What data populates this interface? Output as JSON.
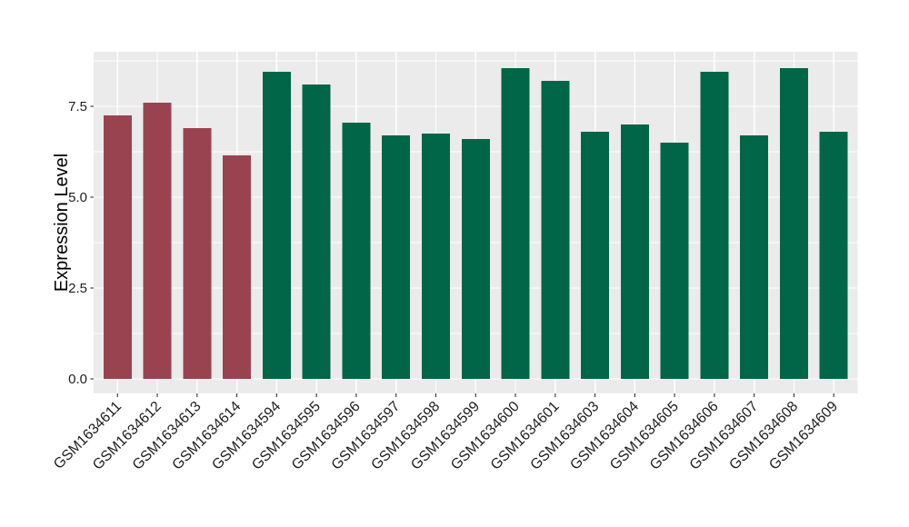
{
  "chart_data": {
    "type": "bar",
    "title": "",
    "xlabel": "",
    "ylabel": "Expression Level",
    "categories": [
      "GSM1634611",
      "GSM1634612",
      "GSM1634613",
      "GSM1634614",
      "GSM1634594",
      "GSM1634595",
      "GSM1634596",
      "GSM1634597",
      "GSM1634598",
      "GSM1634599",
      "GSM1634600",
      "GSM1634601",
      "GSM1634603",
      "GSM1634604",
      "GSM1634605",
      "GSM1634606",
      "GSM1634607",
      "GSM1634608",
      "GSM1634609"
    ],
    "values": [
      7.25,
      7.6,
      6.9,
      6.15,
      8.45,
      8.1,
      7.05,
      6.7,
      6.75,
      6.6,
      8.55,
      8.2,
      6.8,
      7.0,
      6.5,
      8.45,
      6.7,
      8.55,
      6.8
    ],
    "groups": [
      "a",
      "a",
      "a",
      "a",
      "b",
      "b",
      "b",
      "b",
      "b",
      "b",
      "b",
      "b",
      "b",
      "b",
      "b",
      "b",
      "b",
      "b",
      "b"
    ],
    "group_colors": {
      "a": "#9A4350",
      "b": "#006647"
    },
    "yticks": [
      0.0,
      2.5,
      5.0,
      7.5
    ],
    "ytick_labels": [
      "0.0",
      "2.5",
      "5.0",
      "7.5"
    ],
    "ylim": [
      -0.43,
      9.0
    ],
    "grid": true,
    "legend_position": "none",
    "colors": {
      "panel_bg": "#EBEBEB",
      "grid": "#FFFFFF",
      "tick_mark": "#333333",
      "axis_text": "#1F1F1F",
      "axis_title": "#000000",
      "figure_bg": "#FFFFFF"
    }
  }
}
